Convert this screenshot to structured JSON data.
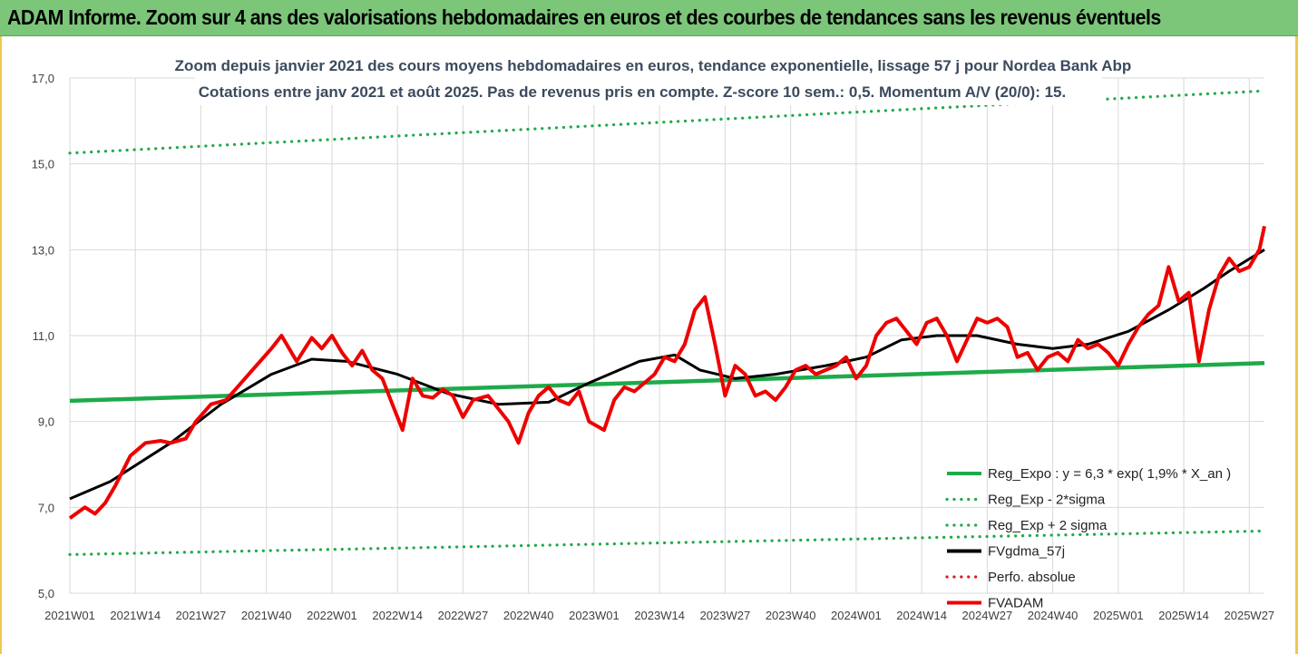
{
  "banner": {
    "title": "ADAM Informe. Zoom sur 4 ans des valorisations hebdomadaires en euros et des courbes de tendances sans les revenus éventuels",
    "background": "#7cc67a"
  },
  "chart_data": {
    "type": "line",
    "title": "Zoom depuis janvier 2021 des cours moyens hebdomadaires en euros, tendance exponentielle, lissage 57 j pour Nordea Bank Abp",
    "subtitle": "Cotations entre janv 2021 et août 2025. Pas de revenus pris en compte. Z-score 10 sem.: 0,5. Momentum A/V (20/0): 15.",
    "xlabel": "",
    "ylabel": "",
    "ylim": [
      5,
      17
    ],
    "yticks": [
      "5,0",
      "7,0",
      "9,0",
      "11,0",
      "13,0",
      "15,0",
      "17,0"
    ],
    "xticks": [
      "2021W01",
      "2021W14",
      "2021W27",
      "2021W40",
      "2022W01",
      "2022W14",
      "2022W27",
      "2022W40",
      "2023W01",
      "2023W14",
      "2023W27",
      "2023W40",
      "2024W01",
      "2024W14",
      "2024W27",
      "2024W40",
      "2025W01",
      "2025W14",
      "2025W27"
    ],
    "grid": true,
    "legend_position": "bottom-right",
    "n_weeks": 238,
    "series": [
      {
        "name": "Reg_Expo : y = 6,3 * exp( 1,9% *  X_an )",
        "color": "#1faa4a",
        "style": "solid",
        "x": [
          0,
          237
        ],
        "values": [
          9.48,
          10.36
        ]
      },
      {
        "name": "Reg_Exp - 2*sigma",
        "color": "#1faa4a",
        "style": "dotted",
        "x": [
          0,
          237
        ],
        "values": [
          5.9,
          6.45
        ]
      },
      {
        "name": "Reg_Exp + 2 sigma",
        "color": "#1faa4a",
        "style": "dotted",
        "x": [
          0,
          237
        ],
        "values": [
          15.25,
          16.7
        ]
      },
      {
        "name": "FVgdma_57j",
        "color": "#000000",
        "style": "solid",
        "x": [
          0,
          8,
          20,
          30,
          40,
          48,
          55,
          65,
          75,
          85,
          95,
          103,
          113,
          120,
          125,
          132,
          140,
          150,
          158,
          165,
          172,
          180,
          188,
          195,
          202,
          210,
          218,
          225,
          230,
          237
        ],
        "values": [
          7.2,
          7.6,
          8.5,
          9.4,
          10.1,
          10.45,
          10.4,
          10.1,
          9.65,
          9.4,
          9.45,
          9.9,
          10.4,
          10.55,
          10.2,
          10.0,
          10.1,
          10.3,
          10.5,
          10.9,
          11.0,
          11.0,
          10.8,
          10.7,
          10.8,
          11.1,
          11.6,
          12.1,
          12.5,
          13.0
        ]
      },
      {
        "name": "Perfo. absolue",
        "color": "#d02020",
        "style": "dotted",
        "x": [],
        "values": []
      },
      {
        "name": "FVADAM",
        "color": "#ee0000",
        "style": "solid",
        "x": [
          0,
          3,
          5,
          7,
          9,
          12,
          15,
          18,
          20,
          23,
          25,
          28,
          31,
          34,
          37,
          40,
          42,
          45,
          48,
          50,
          52,
          54,
          56,
          58,
          60,
          62,
          64,
          66,
          68,
          70,
          72,
          74,
          76,
          78,
          80,
          83,
          85,
          87,
          89,
          91,
          93,
          95,
          97,
          99,
          101,
          103,
          106,
          108,
          110,
          112,
          114,
          116,
          118,
          120,
          122,
          124,
          126,
          128,
          130,
          132,
          134,
          136,
          138,
          140,
          142,
          144,
          146,
          148,
          150,
          152,
          154,
          156,
          158,
          160,
          162,
          164,
          166,
          168,
          170,
          172,
          174,
          176,
          178,
          180,
          182,
          184,
          186,
          188,
          190,
          192,
          194,
          196,
          198,
          200,
          202,
          204,
          206,
          208,
          210,
          212,
          214,
          216,
          218,
          220,
          222,
          224,
          226,
          228,
          230,
          232,
          234,
          236,
          237
        ],
        "values": [
          6.75,
          7.0,
          6.85,
          7.1,
          7.5,
          8.2,
          8.5,
          8.55,
          8.5,
          8.6,
          9.0,
          9.4,
          9.5,
          9.9,
          10.3,
          10.7,
          11.0,
          10.4,
          10.95,
          10.7,
          11.0,
          10.6,
          10.3,
          10.65,
          10.2,
          10.0,
          9.4,
          8.8,
          10.0,
          9.6,
          9.55,
          9.75,
          9.6,
          9.1,
          9.5,
          9.6,
          9.3,
          9.0,
          8.5,
          9.2,
          9.6,
          9.8,
          9.5,
          9.4,
          9.7,
          9.0,
          8.8,
          9.5,
          9.8,
          9.7,
          9.9,
          10.1,
          10.5,
          10.4,
          10.8,
          11.6,
          11.9,
          10.8,
          9.6,
          10.3,
          10.1,
          9.6,
          9.7,
          9.5,
          9.8,
          10.2,
          10.3,
          10.1,
          10.2,
          10.3,
          10.5,
          10.0,
          10.3,
          11.0,
          11.3,
          11.4,
          11.1,
          10.8,
          11.3,
          11.4,
          11.0,
          10.4,
          10.9,
          11.4,
          11.3,
          11.4,
          11.2,
          10.5,
          10.6,
          10.2,
          10.5,
          10.6,
          10.4,
          10.9,
          10.7,
          10.8,
          10.6,
          10.3,
          10.8,
          11.2,
          11.5,
          11.7,
          12.6,
          11.8,
          12.0,
          10.4,
          11.6,
          12.4,
          12.8,
          12.5,
          12.6,
          13.0,
          13.55
        ]
      }
    ]
  }
}
